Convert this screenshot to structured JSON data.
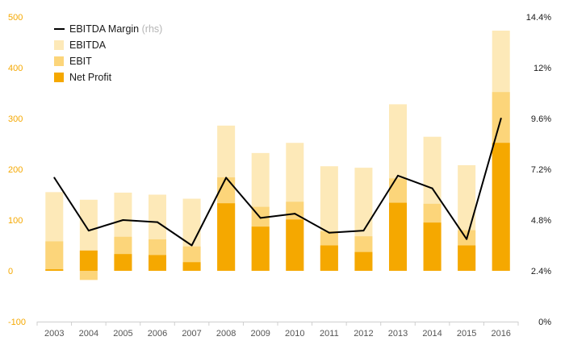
{
  "chart_data": {
    "type": "bar",
    "categories": [
      "2003",
      "2004",
      "2005",
      "2006",
      "2007",
      "2008",
      "2009",
      "2010",
      "2011",
      "2012",
      "2013",
      "2014",
      "2015",
      "2016"
    ],
    "series": [
      {
        "name": "EBITDA",
        "type": "bar",
        "axis": "left",
        "color": "#FDE9B8",
        "values": [
          155,
          140,
          154,
          150,
          142,
          286,
          232,
          252,
          206,
          203,
          328,
          264,
          208,
          473
        ]
      },
      {
        "name": "EBIT",
        "type": "bar",
        "axis": "left",
        "color": "#FCD57A",
        "values": [
          58,
          -18,
          67,
          62,
          48,
          184,
          126,
          136,
          78,
          68,
          182,
          132,
          80,
          352
        ]
      },
      {
        "name": "Net Profit",
        "type": "bar",
        "axis": "left",
        "color": "#F5A800",
        "values": [
          3,
          40,
          33,
          31,
          17,
          133,
          87,
          101,
          50,
          37,
          134,
          95,
          50,
          252
        ]
      },
      {
        "name": "EBITDA Margin",
        "name_suffix": "(rhs)",
        "type": "line",
        "axis": "right",
        "color": "#000000",
        "values": [
          6.8,
          4.3,
          4.8,
          4.7,
          3.6,
          6.8,
          4.9,
          5.1,
          4.2,
          4.3,
          6.9,
          6.3,
          3.9,
          9.6
        ]
      }
    ],
    "left_axis": {
      "min": -100,
      "max": 500,
      "ticks": [
        -100,
        0,
        100,
        200,
        300,
        400,
        500
      ]
    },
    "right_axis": {
      "min": 0,
      "max": 14.4,
      "unit": "%",
      "ticks": [
        "0%",
        "2.4%",
        "4.8%",
        "7.2%",
        "9.6%",
        "12%",
        "14.4%"
      ]
    },
    "legend_position": "top-left",
    "grid": false
  }
}
